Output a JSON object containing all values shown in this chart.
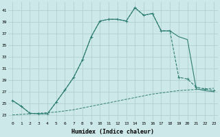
{
  "xlabel": "Humidex (Indice chaleur)",
  "background_color": "#cce8e8",
  "grid_color": "#b0d0d0",
  "line_color": "#2e7d72",
  "xlim": [
    -0.5,
    23.5
  ],
  "ylim": [
    22.0,
    42.5
  ],
  "yticks": [
    23,
    25,
    27,
    29,
    31,
    33,
    35,
    37,
    39,
    41
  ],
  "xticks": [
    0,
    1,
    2,
    3,
    4,
    5,
    6,
    7,
    8,
    9,
    10,
    11,
    12,
    13,
    14,
    15,
    16,
    17,
    18,
    19,
    20,
    21,
    22,
    23
  ],
  "series1_x": [
    0,
    1,
    2,
    3,
    4,
    5,
    6,
    7,
    8,
    9,
    10,
    11,
    12,
    13,
    14,
    15,
    16,
    17,
    18,
    19,
    20,
    21,
    22,
    23
  ],
  "series1_y": [
    25.5,
    24.5,
    23.3,
    23.2,
    23.2,
    25.2,
    27.3,
    29.5,
    32.5,
    36.5,
    39.2,
    39.5,
    39.5,
    39.2,
    41.5,
    40.2,
    40.5,
    37.5,
    37.5,
    29.5,
    29.2,
    27.8,
    27.5,
    27.2
  ],
  "series2_x": [
    0,
    1,
    2,
    3,
    4,
    5,
    6,
    7,
    8,
    9,
    10,
    11,
    12,
    13,
    14,
    15,
    16,
    17,
    18,
    19,
    20,
    21,
    22,
    23
  ],
  "series2_y": [
    25.5,
    24.5,
    23.3,
    23.2,
    23.2,
    25.2,
    27.3,
    29.5,
    32.5,
    36.5,
    39.2,
    39.5,
    39.5,
    39.2,
    41.5,
    40.2,
    40.5,
    37.5,
    37.5,
    36.5,
    36.0,
    27.5,
    27.2,
    27.0
  ],
  "series3_x": [
    0,
    1,
    2,
    3,
    4,
    5,
    6,
    7,
    8,
    9,
    10,
    11,
    12,
    13,
    14,
    15,
    16,
    17,
    18,
    19,
    20,
    21,
    22,
    23
  ],
  "series3_y": [
    23.0,
    23.1,
    23.2,
    23.3,
    23.4,
    23.5,
    23.7,
    23.9,
    24.2,
    24.5,
    24.8,
    25.1,
    25.4,
    25.7,
    26.0,
    26.3,
    26.6,
    26.8,
    27.0,
    27.2,
    27.3,
    27.4,
    27.5,
    27.6
  ]
}
